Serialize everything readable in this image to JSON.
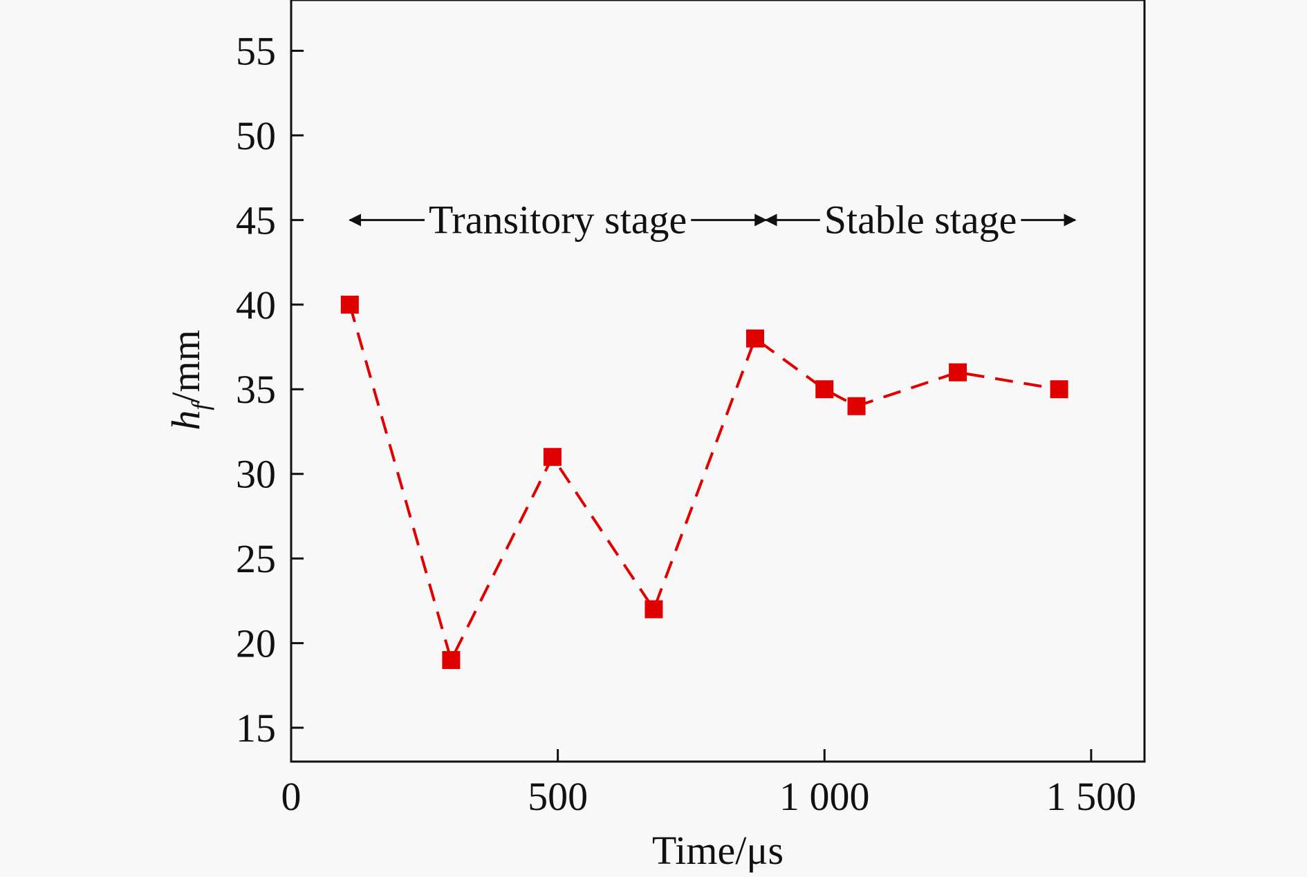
{
  "chart_data": {
    "type": "line",
    "xlabel": "Time/μs",
    "ylabel": {
      "main": "h",
      "subscript": "f",
      "unit": "/mm"
    },
    "xlim": [
      0,
      1600
    ],
    "ylim": [
      13,
      58
    ],
    "x_ticks": [
      0,
      500,
      1000,
      1500
    ],
    "x_tick_labels": [
      "0",
      "500",
      "1 000",
      "1 500"
    ],
    "y_ticks": [
      15,
      20,
      25,
      30,
      35,
      40,
      45,
      50,
      55
    ],
    "y_tick_labels": [
      "15",
      "20",
      "25",
      "30",
      "35",
      "40",
      "45",
      "50",
      "55"
    ],
    "grid": false,
    "series": [
      {
        "color": "#e00000",
        "marker": "square",
        "line_style": "dashed",
        "x": [
          110,
          300,
          490,
          680,
          870,
          1000,
          1060,
          1250,
          1440
        ],
        "y": [
          40,
          19,
          31,
          22,
          38,
          35,
          34,
          36,
          35
        ]
      }
    ],
    "annotations": [
      {
        "text": "Transitory stage",
        "x_start": 110,
        "x_end": 890,
        "y": 45
      },
      {
        "text": "Stable stage",
        "x_start": 890,
        "x_end": 1470,
        "y": 45
      }
    ]
  }
}
